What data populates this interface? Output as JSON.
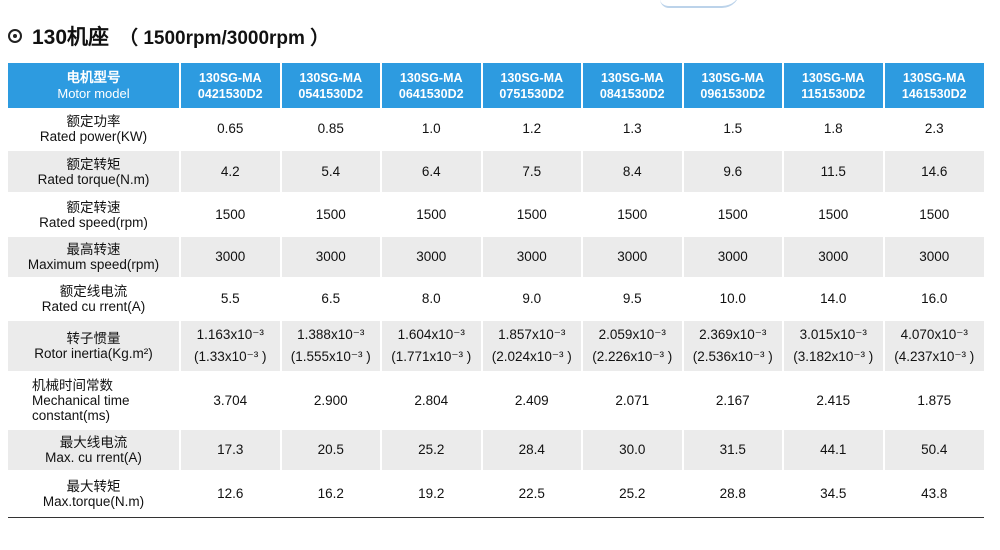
{
  "title": {
    "frame": "130机座",
    "spec": "（ 1500rpm/3000rpm ）"
  },
  "header": {
    "label_zh": "电机型号",
    "label_en": "Motor model",
    "models": [
      {
        "line1": "130SG-MA",
        "line2": "0421530D2"
      },
      {
        "line1": "130SG-MA",
        "line2": "0541530D2"
      },
      {
        "line1": "130SG-MA",
        "line2": "0641530D2"
      },
      {
        "line1": "130SG-MA",
        "line2": "0751530D2"
      },
      {
        "line1": "130SG-MA",
        "line2": "0841530D2"
      },
      {
        "line1": "130SG-MA",
        "line2": "0961530D2"
      },
      {
        "line1": "130SG-MA",
        "line2": "1151530D2"
      },
      {
        "line1": "130SG-MA",
        "line2": "1461530D2"
      }
    ]
  },
  "rows": [
    {
      "zh": "额定功率",
      "en": "Rated power(KW)",
      "values": [
        "0.65",
        "0.85",
        "1.0",
        "1.2",
        "1.3",
        "1.5",
        "1.8",
        "2.3"
      ]
    },
    {
      "zh": "额定转矩",
      "en": "Rated torque(N.m)",
      "values": [
        "4.2",
        "5.4",
        "6.4",
        "7.5",
        "8.4",
        "9.6",
        "11.5",
        "14.6"
      ]
    },
    {
      "zh": "额定转速",
      "en": "Rated speed(rpm)",
      "values": [
        "1500",
        "1500",
        "1500",
        "1500",
        "1500",
        "1500",
        "1500",
        "1500"
      ]
    },
    {
      "zh": "最高转速",
      "en": "Maximum speed(rpm)",
      "values": [
        "3000",
        "3000",
        "3000",
        "3000",
        "3000",
        "3000",
        "3000",
        "3000"
      ]
    },
    {
      "zh": "额定线电流",
      "en": "Rated cu rrent(A)",
      "values": [
        "5.5",
        "6.5",
        "8.0",
        "9.0",
        "9.5",
        "10.0",
        "14.0",
        "16.0"
      ]
    },
    {
      "zh": "转子惯量",
      "en": "Rotor inertia(Kg.m²)",
      "values": [
        "1.163x10⁻³",
        "1.388x10⁻³",
        "1.604x10⁻³",
        "1.857x10⁻³",
        "2.059x10⁻³",
        "2.369x10⁻³",
        "3.015x10⁻³",
        "4.070x10⁻³"
      ],
      "values2": [
        "(1.33x10⁻³ )",
        "(1.555x10⁻³ )",
        "(1.771x10⁻³ )",
        "(2.024x10⁻³ )",
        "(2.226x10⁻³ )",
        "(2.536x10⁻³ )",
        "(3.182x10⁻³ )",
        "(4.237x10⁻³ )"
      ]
    },
    {
      "zh": "机械时间常数",
      "en": "Mechanical time",
      "en2": "constant(ms)",
      "values": [
        "3.704",
        "2.900",
        "2.804",
        "2.409",
        "2.071",
        "2.167",
        "2.415",
        "1.875"
      ]
    },
    {
      "zh": "最大线电流",
      "en": "Max. cu rrent(A)",
      "values": [
        "17.3",
        "20.5",
        "25.2",
        "28.4",
        "30.0",
        "31.5",
        "44.1",
        "50.4"
      ]
    },
    {
      "zh": "最大转矩",
      "en": "Max.torque(N.m)",
      "values": [
        "12.6",
        "16.2",
        "19.2",
        "22.5",
        "25.2",
        "28.8",
        "34.5",
        "43.8"
      ]
    }
  ],
  "colors": {
    "header_bg": "#2d9be0",
    "row_alt_bg": "#ebebeb"
  }
}
